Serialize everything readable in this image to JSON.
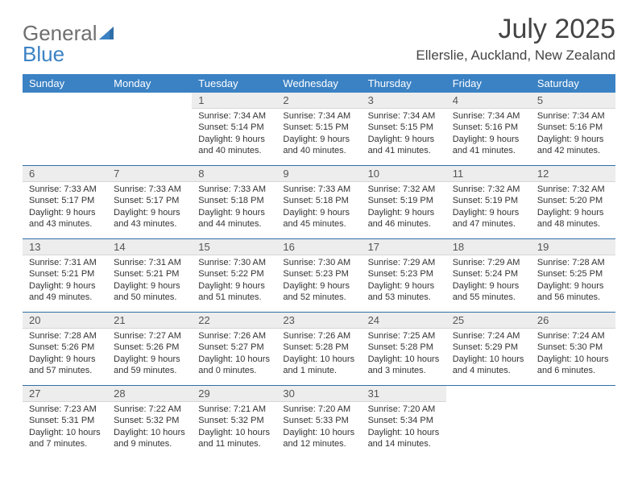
{
  "brand": {
    "part1": "General",
    "part2": "Blue"
  },
  "title": "July 2025",
  "subtitle": "Ellerslie, Auckland, New Zealand",
  "theme": {
    "header_bg": "#3b82c4",
    "header_text": "#ffffff",
    "daynum_bg": "#ededed",
    "week_sep": "#2f6fa8",
    "title_color": "#444444",
    "body_text": "#333333"
  },
  "dow": [
    "Sunday",
    "Monday",
    "Tuesday",
    "Wednesday",
    "Thursday",
    "Friday",
    "Saturday"
  ],
  "weeks": [
    [
      null,
      null,
      {
        "n": "1",
        "sunrise": "7:34 AM",
        "sunset": "5:14 PM",
        "daylight": "9 hours and 40 minutes."
      },
      {
        "n": "2",
        "sunrise": "7:34 AM",
        "sunset": "5:15 PM",
        "daylight": "9 hours and 40 minutes."
      },
      {
        "n": "3",
        "sunrise": "7:34 AM",
        "sunset": "5:15 PM",
        "daylight": "9 hours and 41 minutes."
      },
      {
        "n": "4",
        "sunrise": "7:34 AM",
        "sunset": "5:16 PM",
        "daylight": "9 hours and 41 minutes."
      },
      {
        "n": "5",
        "sunrise": "7:34 AM",
        "sunset": "5:16 PM",
        "daylight": "9 hours and 42 minutes."
      }
    ],
    [
      {
        "n": "6",
        "sunrise": "7:33 AM",
        "sunset": "5:17 PM",
        "daylight": "9 hours and 43 minutes."
      },
      {
        "n": "7",
        "sunrise": "7:33 AM",
        "sunset": "5:17 PM",
        "daylight": "9 hours and 43 minutes."
      },
      {
        "n": "8",
        "sunrise": "7:33 AM",
        "sunset": "5:18 PM",
        "daylight": "9 hours and 44 minutes."
      },
      {
        "n": "9",
        "sunrise": "7:33 AM",
        "sunset": "5:18 PM",
        "daylight": "9 hours and 45 minutes."
      },
      {
        "n": "10",
        "sunrise": "7:32 AM",
        "sunset": "5:19 PM",
        "daylight": "9 hours and 46 minutes."
      },
      {
        "n": "11",
        "sunrise": "7:32 AM",
        "sunset": "5:19 PM",
        "daylight": "9 hours and 47 minutes."
      },
      {
        "n": "12",
        "sunrise": "7:32 AM",
        "sunset": "5:20 PM",
        "daylight": "9 hours and 48 minutes."
      }
    ],
    [
      {
        "n": "13",
        "sunrise": "7:31 AM",
        "sunset": "5:21 PM",
        "daylight": "9 hours and 49 minutes."
      },
      {
        "n": "14",
        "sunrise": "7:31 AM",
        "sunset": "5:21 PM",
        "daylight": "9 hours and 50 minutes."
      },
      {
        "n": "15",
        "sunrise": "7:30 AM",
        "sunset": "5:22 PM",
        "daylight": "9 hours and 51 minutes."
      },
      {
        "n": "16",
        "sunrise": "7:30 AM",
        "sunset": "5:23 PM",
        "daylight": "9 hours and 52 minutes."
      },
      {
        "n": "17",
        "sunrise": "7:29 AM",
        "sunset": "5:23 PM",
        "daylight": "9 hours and 53 minutes."
      },
      {
        "n": "18",
        "sunrise": "7:29 AM",
        "sunset": "5:24 PM",
        "daylight": "9 hours and 55 minutes."
      },
      {
        "n": "19",
        "sunrise": "7:28 AM",
        "sunset": "5:25 PM",
        "daylight": "9 hours and 56 minutes."
      }
    ],
    [
      {
        "n": "20",
        "sunrise": "7:28 AM",
        "sunset": "5:26 PM",
        "daylight": "9 hours and 57 minutes."
      },
      {
        "n": "21",
        "sunrise": "7:27 AM",
        "sunset": "5:26 PM",
        "daylight": "9 hours and 59 minutes."
      },
      {
        "n": "22",
        "sunrise": "7:26 AM",
        "sunset": "5:27 PM",
        "daylight": "10 hours and 0 minutes."
      },
      {
        "n": "23",
        "sunrise": "7:26 AM",
        "sunset": "5:28 PM",
        "daylight": "10 hours and 1 minute."
      },
      {
        "n": "24",
        "sunrise": "7:25 AM",
        "sunset": "5:28 PM",
        "daylight": "10 hours and 3 minutes."
      },
      {
        "n": "25",
        "sunrise": "7:24 AM",
        "sunset": "5:29 PM",
        "daylight": "10 hours and 4 minutes."
      },
      {
        "n": "26",
        "sunrise": "7:24 AM",
        "sunset": "5:30 PM",
        "daylight": "10 hours and 6 minutes."
      }
    ],
    [
      {
        "n": "27",
        "sunrise": "7:23 AM",
        "sunset": "5:31 PM",
        "daylight": "10 hours and 7 minutes."
      },
      {
        "n": "28",
        "sunrise": "7:22 AM",
        "sunset": "5:32 PM",
        "daylight": "10 hours and 9 minutes."
      },
      {
        "n": "29",
        "sunrise": "7:21 AM",
        "sunset": "5:32 PM",
        "daylight": "10 hours and 11 minutes."
      },
      {
        "n": "30",
        "sunrise": "7:20 AM",
        "sunset": "5:33 PM",
        "daylight": "10 hours and 12 minutes."
      },
      {
        "n": "31",
        "sunrise": "7:20 AM",
        "sunset": "5:34 PM",
        "daylight": "10 hours and 14 minutes."
      },
      null,
      null
    ]
  ],
  "labels": {
    "sunrise": "Sunrise:",
    "sunset": "Sunset:",
    "daylight": "Daylight:"
  }
}
